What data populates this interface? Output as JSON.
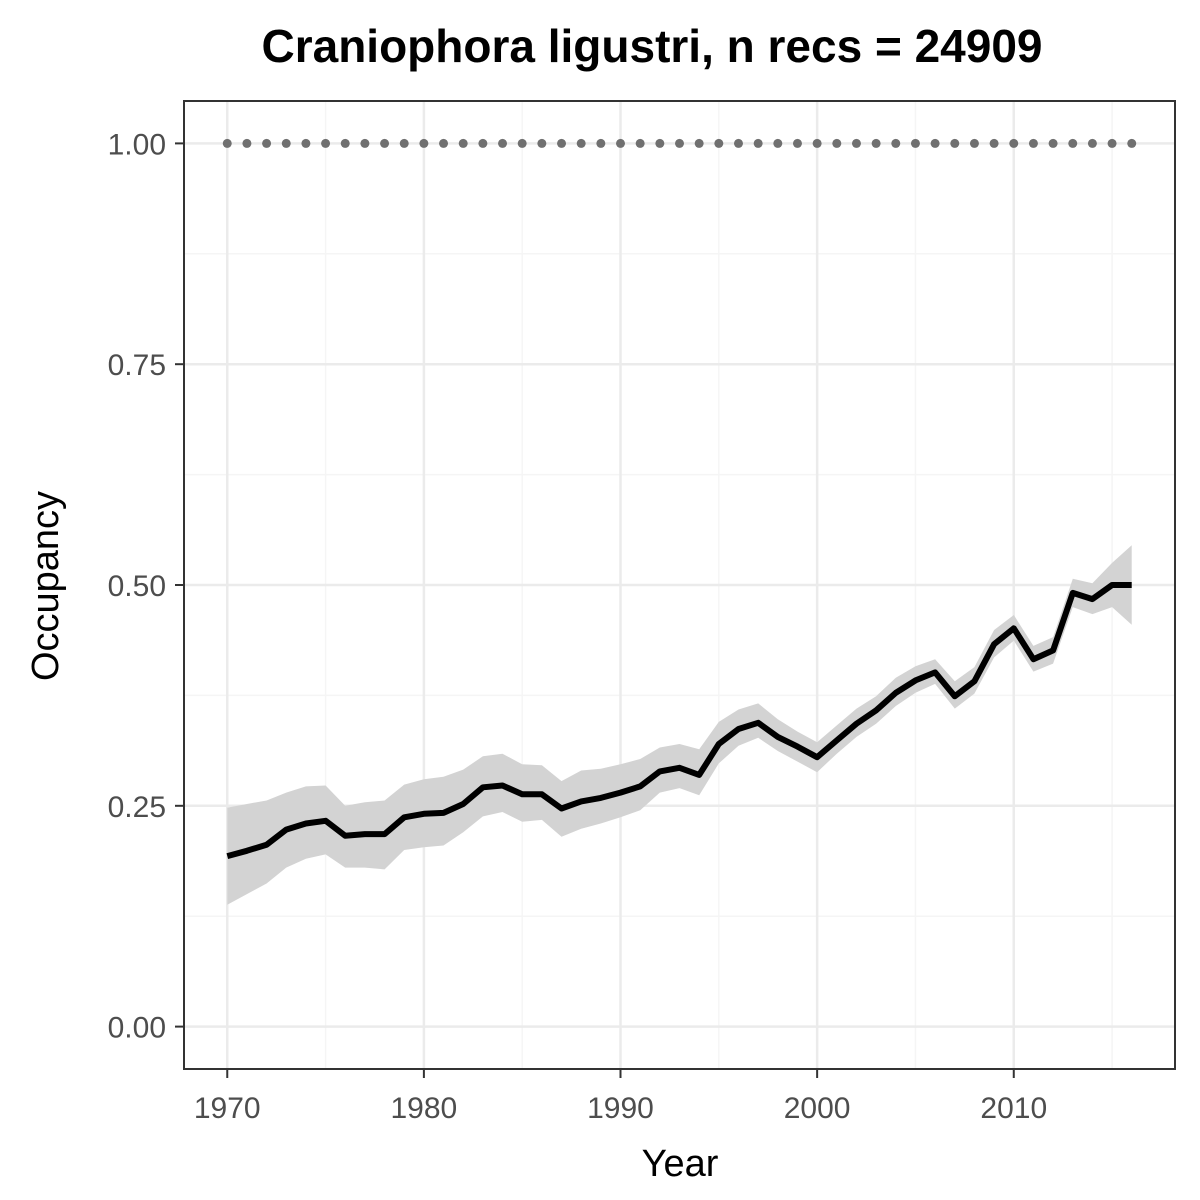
{
  "chart_data": {
    "type": "line",
    "title": "Craniophora ligustri, n recs = 24909",
    "xlabel": "Year",
    "ylabel": "Occupancy",
    "xlim": [
      1967.8,
      2018.2
    ],
    "ylim": [
      -0.048,
      1.048
    ],
    "x_ticks": [
      1970,
      1980,
      1990,
      2000,
      2010
    ],
    "x_tick_labels": [
      "1970",
      "1980",
      "1990",
      "2000",
      "2010"
    ],
    "y_ticks": [
      0,
      0.25,
      0.5,
      0.75,
      1.0
    ],
    "y_tick_labels": [
      "0.00",
      "0.25",
      "0.50",
      "0.75",
      "1.00"
    ],
    "grid": true,
    "colors": {
      "line": "#000000",
      "band": "#d3d3d3",
      "dots": "#707070",
      "grid_major": "#ebebeb",
      "grid_minor": "#f5f5f5",
      "frame": "#333333"
    },
    "x": [
      1970,
      1971,
      1972,
      1973,
      1974,
      1975,
      1976,
      1977,
      1978,
      1979,
      1980,
      1981,
      1982,
      1983,
      1984,
      1985,
      1986,
      1987,
      1988,
      1989,
      1990,
      1991,
      1992,
      1993,
      1994,
      1995,
      1996,
      1997,
      1998,
      1999,
      2000,
      2001,
      2002,
      2003,
      2004,
      2005,
      2006,
      2007,
      2008,
      2009,
      2010,
      2011,
      2012,
      2013,
      2014,
      2015,
      2016
    ],
    "series": [
      {
        "values": [
          0.193,
          0.199,
          0.206,
          0.223,
          0.23,
          0.233,
          0.216,
          0.218,
          0.218,
          0.237,
          0.241,
          0.242,
          0.252,
          0.271,
          0.273,
          0.263,
          0.263,
          0.247,
          0.255,
          0.259,
          0.265,
          0.272,
          0.289,
          0.293,
          0.285,
          0.32,
          0.337,
          0.344,
          0.328,
          0.317,
          0.305,
          0.324,
          0.343,
          0.358,
          0.378,
          0.392,
          0.401,
          0.374,
          0.391,
          0.433,
          0.451,
          0.416,
          0.426,
          0.491,
          0.484,
          0.5,
          0.5
        ],
        "lower": [
          0.138,
          0.15,
          0.162,
          0.18,
          0.19,
          0.195,
          0.18,
          0.18,
          0.178,
          0.2,
          0.203,
          0.205,
          0.22,
          0.238,
          0.243,
          0.232,
          0.234,
          0.215,
          0.224,
          0.23,
          0.237,
          0.245,
          0.265,
          0.27,
          0.262,
          0.298,
          0.318,
          0.327,
          0.312,
          0.3,
          0.288,
          0.309,
          0.328,
          0.343,
          0.363,
          0.378,
          0.388,
          0.36,
          0.377,
          0.418,
          0.437,
          0.402,
          0.411,
          0.475,
          0.467,
          0.475,
          0.455
        ],
        "upper": [
          0.248,
          0.252,
          0.256,
          0.265,
          0.272,
          0.273,
          0.25,
          0.254,
          0.256,
          0.274,
          0.28,
          0.283,
          0.291,
          0.306,
          0.309,
          0.297,
          0.296,
          0.278,
          0.29,
          0.292,
          0.297,
          0.303,
          0.316,
          0.32,
          0.314,
          0.345,
          0.359,
          0.366,
          0.348,
          0.334,
          0.322,
          0.341,
          0.36,
          0.374,
          0.395,
          0.408,
          0.416,
          0.391,
          0.407,
          0.449,
          0.466,
          0.431,
          0.441,
          0.507,
          0.502,
          0.525,
          0.545
        ]
      },
      {
        "values": [
          1,
          1,
          1,
          1,
          1,
          1,
          1,
          1,
          1,
          1,
          1,
          1,
          1,
          1,
          1,
          1,
          1,
          1,
          1,
          1,
          1,
          1,
          1,
          1,
          1,
          1,
          1,
          1,
          1,
          1,
          1,
          1,
          1,
          1,
          1,
          1,
          1,
          1,
          1,
          1,
          1,
          1,
          1,
          1,
          1,
          1,
          1
        ]
      }
    ]
  }
}
